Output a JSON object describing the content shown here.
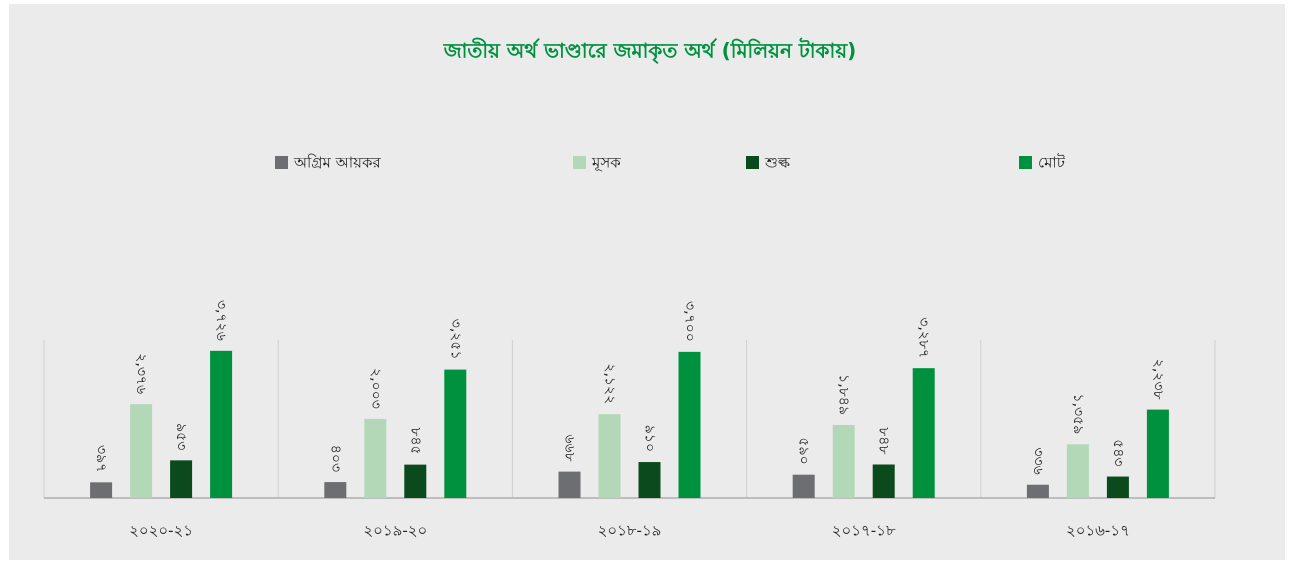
{
  "chart_data": {
    "type": "bar",
    "title": "জাতীয় অর্থ ভাণ্ডারে জমাকৃত অর্থ (মিলিয়ন টাকায়)",
    "categories": [
      "২০২০-২১",
      "২০১৯-২০",
      "২০১৮-১৯",
      "২০১৭-১৮",
      "২০১৬-১৭"
    ],
    "series": [
      {
        "name": "অগ্রিম আয়কর",
        "color": "#6d6e71",
        "values": [
          397,
          403,
          668,
          590,
          336
        ],
        "value_labels": [
          "৩৯৭",
          "৪০৩",
          "৬৬৮",
          "৫৯০",
          "৩৩৬"
        ]
      },
      {
        "name": "মূসক",
        "color": "#b3d8b8",
        "values": [
          2376,
          2003,
          2122,
          1849,
          1359
        ],
        "value_labels": [
          "২,৩৭৬",
          "২,০০৩",
          "২,১২২",
          "১,৮৪৯",
          "১,৩৫৯"
        ]
      },
      {
        "name": "শুল্ক",
        "color": "#0b4a1c",
        "values": [
          953,
          845,
          910,
          848,
          543
        ],
        "value_labels": [
          "৯৫৩",
          "৮৪৫",
          "৯১০",
          "৮৪৮",
          "৫৪৩"
        ]
      },
      {
        "name": "মোট",
        "color": "#00913f",
        "values": [
          3726,
          3251,
          3700,
          3287,
          2238
        ],
        "value_labels": [
          "৩,৭২৬",
          "৩,২৫১",
          "৩,৭০০",
          "৩,২৮৭",
          "২,২৩৮"
        ]
      }
    ],
    "ylim": [
      0,
      4000
    ],
    "legend": "top"
  }
}
